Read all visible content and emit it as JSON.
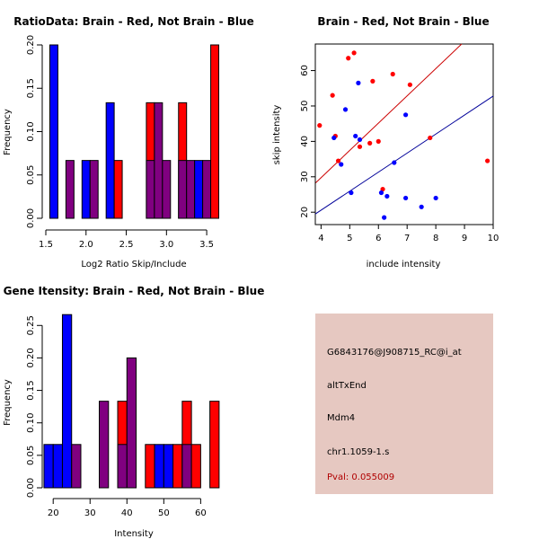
{
  "colors": {
    "brain": "#ff0000",
    "not_brain": "#0000ff",
    "overlap": "#800080",
    "info_bg": "#e6c8c1",
    "pval_text": "#b00000",
    "line_red": "#cc0000",
    "line_blue": "#000099"
  },
  "chart_data": [
    {
      "id": "ratio_hist",
      "type": "bar",
      "title": "RatioData: Brain - Red, Not Brain - Blue",
      "xlabel": "Log2 Ratio Skip/Include",
      "ylabel": "Frequency",
      "xlim": [
        1.5,
        3.7
      ],
      "ylim": [
        0,
        0.2
      ],
      "xticks": [
        1.5,
        2.0,
        2.5,
        3.0,
        3.5
      ],
      "xtick_labels": [
        "1.5",
        "2.0",
        "2.5",
        "3.0",
        "3.5"
      ],
      "yticks": [
        0,
        0.05,
        0.1,
        0.15,
        0.2
      ],
      "ytick_labels": [
        "0.00",
        "0.05",
        "0.10",
        "0.15",
        "0.20"
      ],
      "bin_width": 0.1,
      "bars": [
        {
          "x0": 1.55,
          "value": 0.2,
          "series": "not_brain"
        },
        {
          "x0": 1.75,
          "value": 0.0667,
          "series": "overlap"
        },
        {
          "x0": 1.95,
          "value": 0.0667,
          "series": "not_brain"
        },
        {
          "x0": 2.05,
          "value": 0.0667,
          "series": "overlap"
        },
        {
          "x0": 2.25,
          "value": 0.1333,
          "series": "not_brain"
        },
        {
          "x0": 2.35,
          "value": 0.0667,
          "series": "brain"
        },
        {
          "x0": 2.75,
          "value": 0.1333,
          "series": "brain"
        },
        {
          "x0": 2.75,
          "value": 0.0667,
          "series": "overlap"
        },
        {
          "x0": 2.85,
          "value": 0.1333,
          "series": "overlap"
        },
        {
          "x0": 2.95,
          "value": 0.0667,
          "series": "overlap"
        },
        {
          "x0": 3.15,
          "value": 0.1333,
          "series": "brain"
        },
        {
          "x0": 3.15,
          "value": 0.0667,
          "series": "overlap"
        },
        {
          "x0": 3.25,
          "value": 0.0667,
          "series": "overlap"
        },
        {
          "x0": 3.35,
          "value": 0.0667,
          "series": "not_brain"
        },
        {
          "x0": 3.45,
          "value": 0.0667,
          "series": "overlap"
        },
        {
          "x0": 3.55,
          "value": 0.2,
          "series": "brain"
        }
      ]
    },
    {
      "id": "scatter",
      "type": "scatter",
      "title": "Brain - Red, Not Brain - Blue",
      "xlabel": "include intensity",
      "ylabel": "skip intensity",
      "xlim": [
        3.8,
        10.0
      ],
      "ylim": [
        16.5,
        67.5
      ],
      "xticks": [
        4,
        5,
        6,
        7,
        8,
        9,
        10
      ],
      "xtick_labels": [
        "4",
        "5",
        "6",
        "7",
        "8",
        "9",
        "10"
      ],
      "yticks": [
        20,
        30,
        40,
        50,
        60
      ],
      "ytick_labels": [
        "20",
        "30",
        "40",
        "50",
        "60"
      ],
      "series": [
        {
          "name": "brain",
          "points": [
            [
              3.95,
              44.5
            ],
            [
              4.4,
              53
            ],
            [
              4.5,
              41.5
            ],
            [
              4.6,
              34.5
            ],
            [
              4.95,
              63.5
            ],
            [
              5.15,
              65
            ],
            [
              5.35,
              38.5
            ],
            [
              5.7,
              39.5
            ],
            [
              5.8,
              57
            ],
            [
              6.0,
              40
            ],
            [
              6.15,
              26.5
            ],
            [
              6.5,
              59
            ],
            [
              7.1,
              56
            ],
            [
              7.8,
              41
            ],
            [
              9.8,
              34.5
            ]
          ],
          "fit": [
            [
              3.8,
              28.2
            ],
            [
              8.9,
              67.5
            ]
          ]
        },
        {
          "name": "not_brain",
          "points": [
            [
              4.45,
              41
            ],
            [
              4.7,
              33.5
            ],
            [
              4.85,
              49
            ],
            [
              5.05,
              25.5
            ],
            [
              5.2,
              41.5
            ],
            [
              5.3,
              56.5
            ],
            [
              5.35,
              40.5
            ],
            [
              6.1,
              25.5
            ],
            [
              6.2,
              18.5
            ],
            [
              6.3,
              24.5
            ],
            [
              6.55,
              34
            ],
            [
              6.95,
              47.5
            ],
            [
              6.95,
              24
            ],
            [
              7.5,
              21.5
            ],
            [
              8.0,
              24
            ]
          ],
          "fit": [
            [
              3.8,
              19.5
            ],
            [
              10.0,
              52.8
            ]
          ]
        }
      ]
    },
    {
      "id": "intensity_hist",
      "type": "bar",
      "title": "Gene Itensity: Brain - Red, Not Brain - Blue",
      "xlabel": "Intensity",
      "ylabel": "Frequency",
      "xlim": [
        18,
        66
      ],
      "ylim": [
        0,
        0.267
      ],
      "xticks": [
        20,
        30,
        40,
        50,
        60
      ],
      "xtick_labels": [
        "20",
        "30",
        "40",
        "50",
        "60"
      ],
      "yticks": [
        0,
        0.05,
        0.1,
        0.15,
        0.2,
        0.25
      ],
      "ytick_labels": [
        "0.00",
        "0.05",
        "0.10",
        "0.15",
        "0.20",
        "0.25"
      ],
      "bin_width": 2.5,
      "bars": [
        {
          "x0": 17.5,
          "value": 0.0667,
          "series": "not_brain"
        },
        {
          "x0": 20.0,
          "value": 0.0667,
          "series": "not_brain"
        },
        {
          "x0": 22.5,
          "value": 0.2667,
          "series": "not_brain"
        },
        {
          "x0": 25.0,
          "value": 0.0667,
          "series": "overlap"
        },
        {
          "x0": 32.5,
          "value": 0.1333,
          "series": "overlap"
        },
        {
          "x0": 37.5,
          "value": 0.1333,
          "series": "brain"
        },
        {
          "x0": 37.5,
          "value": 0.0667,
          "series": "overlap"
        },
        {
          "x0": 40.0,
          "value": 0.2,
          "series": "overlap"
        },
        {
          "x0": 45.0,
          "value": 0.0667,
          "series": "brain"
        },
        {
          "x0": 47.5,
          "value": 0.0667,
          "series": "not_brain"
        },
        {
          "x0": 50.0,
          "value": 0.0667,
          "series": "not_brain"
        },
        {
          "x0": 52.5,
          "value": 0.0667,
          "series": "brain"
        },
        {
          "x0": 55.0,
          "value": 0.1333,
          "series": "brain"
        },
        {
          "x0": 55.0,
          "value": 0.0667,
          "series": "overlap"
        },
        {
          "x0": 57.5,
          "value": 0.0667,
          "series": "brain"
        },
        {
          "x0": 62.5,
          "value": 0.1333,
          "series": "brain"
        }
      ]
    }
  ],
  "info": {
    "probe": "G6843176@J908715_RC@i_at",
    "event": "altTxEnd",
    "gene": "Mdm4",
    "locus": "chr1.1059-1.s",
    "pval": "Pval: 0.055009"
  }
}
